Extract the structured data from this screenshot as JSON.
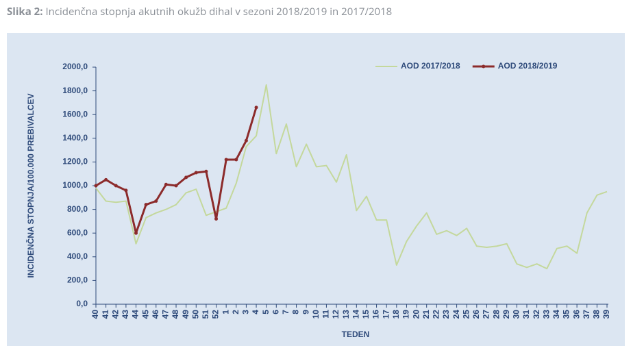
{
  "chart_data": {
    "type": "line",
    "figure_label": "Slika 2:",
    "title": "Incidenčna stopnja akutnih okužb dihal v sezoni 2018/2019 in 2017/2018",
    "y_label": "INCIDENČNA STOPNJA/100.000 PREBIVALCEV",
    "x_label": "TEDEN",
    "categories": [
      "40",
      "41",
      "42",
      "43",
      "44",
      "45",
      "46",
      "47",
      "48",
      "49",
      "50",
      "51",
      "52",
      "1",
      "2",
      "3",
      "4",
      "5",
      "6",
      "7",
      "8",
      "9",
      "10",
      "11",
      "12",
      "13",
      "14",
      "15",
      "16",
      "17",
      "18",
      "19",
      "20",
      "21",
      "22",
      "23",
      "24",
      "25",
      "26",
      "27",
      "28",
      "29",
      "30",
      "31",
      "32",
      "33",
      "34",
      "35",
      "36",
      "37",
      "38",
      "39"
    ],
    "series": [
      {
        "name": "AOD 2017/2018",
        "color": "#c4d89c",
        "marker": null,
        "values": [
          980,
          870,
          860,
          870,
          510,
          730,
          770,
          800,
          840,
          940,
          970,
          750,
          780,
          810,
          1020,
          1330,
          1420,
          1850,
          1270,
          1520,
          1160,
          1350,
          1160,
          1170,
          1030,
          1260,
          790,
          910,
          710,
          710,
          330,
          530,
          660,
          770,
          590,
          620,
          580,
          640,
          490,
          480,
          490,
          510,
          340,
          310,
          340,
          300,
          470,
          490,
          430,
          770,
          920,
          950
        ]
      },
      {
        "name": "AOD 2018/2019",
        "color": "#8c2b2b",
        "marker": "circle",
        "values": [
          1000,
          1050,
          1000,
          960,
          600,
          840,
          870,
          1010,
          1000,
          1070,
          1110,
          1120,
          720,
          1220,
          1220,
          1380,
          1660,
          null,
          null,
          null,
          null,
          null,
          null,
          null,
          null,
          null,
          null,
          null,
          null,
          null,
          null,
          null,
          null,
          null,
          null,
          null,
          null,
          null,
          null,
          null,
          null,
          null,
          null,
          null,
          null,
          null,
          null,
          null,
          null,
          null,
          null,
          null
        ]
      }
    ],
    "ylim": [
      0,
      2000
    ],
    "yticks": [
      {
        "value": 0,
        "label": "0,0"
      },
      {
        "value": 200,
        "label": "200,0"
      },
      {
        "value": 400,
        "label": "400,0"
      },
      {
        "value": 600,
        "label": "600,0"
      },
      {
        "value": 800,
        "label": "800,0"
      },
      {
        "value": 1000,
        "label": "1000,0"
      },
      {
        "value": 1200,
        "label": "1200,0"
      },
      {
        "value": 1400,
        "label": "1400,0"
      },
      {
        "value": 1600,
        "label": "1600,0"
      },
      {
        "value": 1800,
        "label": "1800,0"
      },
      {
        "value": 2000,
        "label": "2000,0"
      }
    ],
    "grid": false,
    "legend": "top-right"
  }
}
